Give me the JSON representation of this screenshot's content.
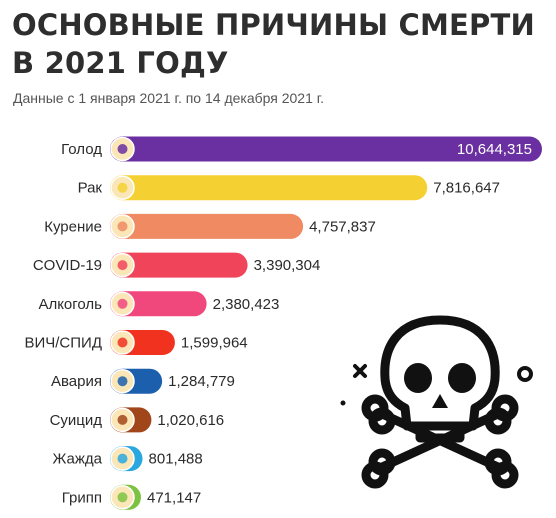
{
  "header": {
    "title_line1": "ОСНОВНЫЕ ПРИЧИНЫ СМЕРТИ",
    "title_line2": "В 2021 ГОДУ",
    "subtitle": "Данные с 1 января 2021 г. по 14 декабря 2021 г."
  },
  "chart_data": {
    "type": "bar",
    "orientation": "horizontal",
    "title": "ОСНОВНЫЕ ПРИЧИНЫ СМЕРТИ В 2021 ГОДУ",
    "subtitle": "Данные с 1 января 2021 г. по 14 декабря 2021 г.",
    "categories": [
      "Голод",
      "Рак",
      "Курение",
      "COVID-19",
      "Алкоголь",
      "ВИЧ/СПИД",
      "Авария",
      "Суицид",
      "Жажда",
      "Грипп"
    ],
    "values": [
      10644315,
      7816647,
      4757837,
      3390304,
      2380423,
      1599964,
      1284779,
      1020616,
      801488,
      471147
    ],
    "value_labels": [
      "10,644,315",
      "7,816,647",
      "4,757,837",
      "3,390,304",
      "2,380,423",
      "1,599,964",
      "1,284,779",
      "1,020,616",
      "801,488",
      "471,147"
    ],
    "colors": [
      "#6a2fa0",
      "#f5d033",
      "#ef8a62",
      "#f0445a",
      "#f0487d",
      "#f0321e",
      "#1b5fad",
      "#a1461a",
      "#29a7df",
      "#7dc242"
    ],
    "icons": [
      "hunger-icon",
      "cancer-icon",
      "smoking-icon",
      "virus-icon",
      "alcohol-icon",
      "hiv-ribbon-icon",
      "car-crash-icon",
      "suicide-rope-icon",
      "no-water-icon",
      "flu-icon"
    ],
    "grid": false,
    "legend": "none"
  },
  "decor": {
    "skull": "skull-crossbones-icon"
  }
}
